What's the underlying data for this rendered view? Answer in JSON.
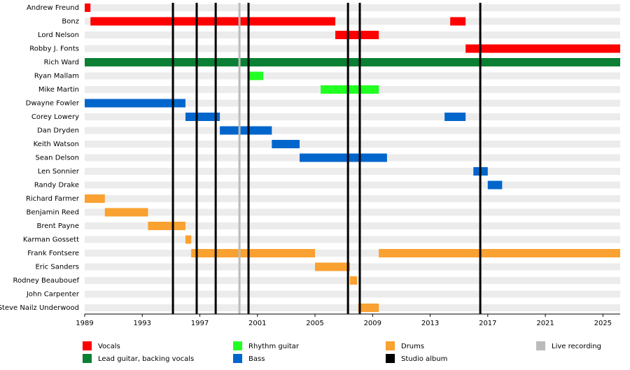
{
  "chart_data": {
    "type": "timeline",
    "xlim": [
      1989,
      2026.2
    ],
    "xticks": [
      1989,
      1993,
      1997,
      2001,
      2005,
      2009,
      2013,
      2017,
      2021,
      2025
    ],
    "legend": [
      {
        "name": "Vocals",
        "color": "#ff0000"
      },
      {
        "name": "Lead guitar, backing vocals",
        "color": "#0b8035"
      },
      {
        "name": "Rhythm guitar",
        "color": "#22ff22"
      },
      {
        "name": "Bass",
        "color": "#0066cc"
      },
      {
        "name": "Drums",
        "color": "#f9a131"
      },
      {
        "name": "Live recording",
        "color": "#bbbbbb"
      },
      {
        "name": "Studio album",
        "color": "#000000"
      }
    ],
    "markers": [
      {
        "name": "Live recording",
        "x": [
          1999.75
        ]
      },
      {
        "name": "Studio album",
        "x": [
          1995.13,
          1996.78,
          1998.1,
          2000.38,
          2007.29,
          2008.11,
          2016.48
        ]
      }
    ],
    "members": [
      {
        "name": "Andrew Freund",
        "role": "Vocals",
        "spans": [
          [
            1989,
            1989.4
          ]
        ]
      },
      {
        "name": "Bonz",
        "role": "Vocals",
        "spans": [
          [
            1989.4,
            2006.41
          ],
          [
            2014.39,
            2015.46
          ]
        ]
      },
      {
        "name": "Lord Nelson",
        "role": "Vocals",
        "spans": [
          [
            2006.41,
            2009.43
          ]
        ]
      },
      {
        "name": "Robby J. Fonts",
        "role": "Vocals",
        "spans": [
          [
            2015.46,
            2026.2
          ]
        ]
      },
      {
        "name": "Rich Ward",
        "role": "Lead guitar, backing vocals",
        "spans": [
          [
            1989,
            2026.2
          ]
        ]
      },
      {
        "name": "Ryan Mallam",
        "role": "Rhythm guitar",
        "spans": [
          [
            2000.38,
            2001.4
          ]
        ]
      },
      {
        "name": "Mike Martin",
        "role": "Rhythm guitar",
        "spans": [
          [
            2005.39,
            2009.43
          ]
        ]
      },
      {
        "name": "Dwayne Fowler",
        "role": "Bass",
        "spans": [
          [
            1989,
            1996.0
          ]
        ]
      },
      {
        "name": "Corey Lowery",
        "role": "Bass",
        "spans": [
          [
            1996.0,
            1998.39
          ],
          [
            2014.0,
            2015.46
          ]
        ]
      },
      {
        "name": "Dan Dryden",
        "role": "Bass",
        "spans": [
          [
            1998.39,
            2002.0
          ]
        ]
      },
      {
        "name": "Keith Watson",
        "role": "Bass",
        "spans": [
          [
            2002.0,
            2003.93
          ]
        ]
      },
      {
        "name": "Sean Delson",
        "role": "Bass",
        "spans": [
          [
            2003.93,
            2010.0
          ]
        ]
      },
      {
        "name": "Len Sonnier",
        "role": "Bass",
        "spans": [
          [
            2016.0,
            2017.0
          ]
        ]
      },
      {
        "name": "Randy Drake",
        "role": "Bass",
        "spans": [
          [
            2017.0,
            2018.0
          ]
        ]
      },
      {
        "name": "Richard Farmer",
        "role": "Drums",
        "spans": [
          [
            1989,
            1990.4
          ]
        ]
      },
      {
        "name": "Benjamin Reed",
        "role": "Drums",
        "spans": [
          [
            1990.4,
            1993.4
          ]
        ]
      },
      {
        "name": "Brent Payne",
        "role": "Drums",
        "spans": [
          [
            1993.4,
            1996.0
          ]
        ]
      },
      {
        "name": "Karman Gossett",
        "role": "Drums",
        "spans": [
          [
            1996.0,
            1996.4
          ]
        ]
      },
      {
        "name": "Frank Fontsere",
        "role": "Drums",
        "spans": [
          [
            1996.4,
            2005.0
          ],
          [
            2009.43,
            2026.2
          ]
        ]
      },
      {
        "name": "Eric Sanders",
        "role": "Drums",
        "spans": [
          [
            2005.0,
            2007.43
          ]
        ]
      },
      {
        "name": "Rodney Beaubouef",
        "role": "Drums",
        "spans": [
          [
            2007.43,
            2007.92
          ]
        ]
      },
      {
        "name": "John Carpenter",
        "role": "Drums",
        "spans": []
      },
      {
        "name": "Steve Nailz Underwood",
        "role": "Drums",
        "spans": [
          [
            2008.0,
            2009.43
          ]
        ]
      }
    ]
  }
}
